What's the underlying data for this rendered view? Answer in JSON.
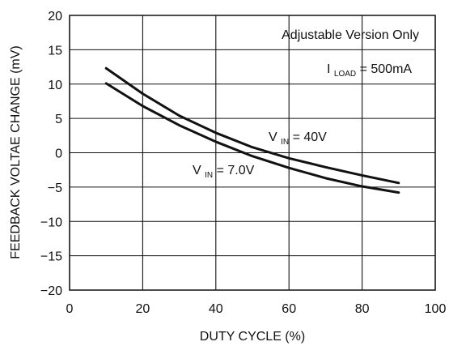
{
  "chart_data": {
    "type": "line",
    "xlabel": "DUTY CYCLE (%)",
    "ylabel": "FEEDBACK VOLTAE CHANGE (mV)",
    "xlim": [
      0,
      100
    ],
    "ylim": [
      -20,
      20
    ],
    "xticks": [
      0,
      20,
      40,
      60,
      80,
      100
    ],
    "yticks": [
      20,
      15,
      10,
      5,
      0,
      -5,
      -10,
      -15,
      -20
    ],
    "grid": true,
    "series": [
      {
        "name": "VIN = 40V",
        "x": [
          10,
          20,
          30,
          40,
          50,
          60,
          70,
          80,
          90
        ],
        "y": [
          12.3,
          8.6,
          5.4,
          2.9,
          0.8,
          -0.8,
          -2.1,
          -3.3,
          -4.4
        ]
      },
      {
        "name": "VIN = 7.0V",
        "x": [
          10,
          20,
          30,
          40,
          50,
          60,
          70,
          80,
          90
        ],
        "y": [
          10.1,
          6.8,
          4.0,
          1.6,
          -0.5,
          -2.2,
          -3.7,
          -4.9,
          -5.8
        ]
      }
    ],
    "annotations": {
      "version_note": "Adjustable Version Only",
      "iload_main": "I",
      "iload_sub": "LOAD",
      "iload_value": " = 500mA",
      "vin40_main": "V",
      "vin40_sub": "IN",
      "vin40_value": " = 40V",
      "vin7_main": "V",
      "vin7_sub": "IN",
      "vin7_value": " = 7.0V"
    },
    "colors": {
      "line": "#111111"
    }
  }
}
